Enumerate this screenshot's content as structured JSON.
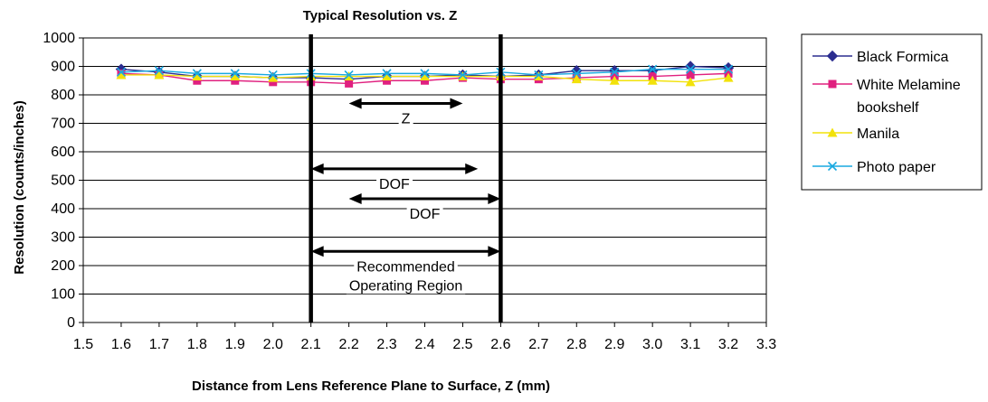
{
  "chart_data": {
    "type": "line",
    "title": "Typical Resolution vs. Z",
    "xlabel": "Distance from Lens Reference Plane to Surface, Z (mm)",
    "ylabel": "Resolution (counts/inches)",
    "xlim": [
      1.5,
      3.3
    ],
    "ylim": [
      0,
      1000
    ],
    "x_ticks": [
      "1.5",
      "1.6",
      "1.7",
      "1.8",
      "1.9",
      "2.0",
      "2.1",
      "2.2",
      "2.3",
      "2.4",
      "2.5",
      "2.6",
      "2.7",
      "2.8",
      "2.9",
      "3.0",
      "3.1",
      "3.2",
      "3.3"
    ],
    "y_ticks": [
      "0",
      "100",
      "200",
      "300",
      "400",
      "500",
      "600",
      "700",
      "800",
      "900",
      "1000"
    ],
    "grid": "horizontal",
    "legend_position": "right",
    "x": [
      1.6,
      1.7,
      1.8,
      1.9,
      2.0,
      2.1,
      2.2,
      2.3,
      2.4,
      2.5,
      2.6,
      2.7,
      2.8,
      2.9,
      3.0,
      3.1,
      3.2
    ],
    "series": [
      {
        "name": "Black Formica",
        "color": "#2b2d8f",
        "marker": "diamond",
        "values": [
          890,
          880,
          865,
          865,
          860,
          860,
          855,
          865,
          865,
          870,
          865,
          870,
          885,
          885,
          885,
          900,
          895
        ]
      },
      {
        "name": "White Melamine bookshelf",
        "color": "#e0207f",
        "marker": "square",
        "values": [
          875,
          870,
          850,
          850,
          845,
          845,
          840,
          850,
          850,
          860,
          855,
          855,
          860,
          865,
          865,
          870,
          875
        ]
      },
      {
        "name": "Manila",
        "color": "#f2e20a",
        "marker": "triangle",
        "values": [
          870,
          870,
          865,
          865,
          860,
          865,
          865,
          865,
          865,
          865,
          865,
          865,
          855,
          850,
          850,
          845,
          860
        ]
      },
      {
        "name": "Photo paper",
        "color": "#19a9e0",
        "marker": "x",
        "values": [
          880,
          885,
          875,
          875,
          870,
          875,
          870,
          875,
          875,
          870,
          880,
          870,
          875,
          880,
          890,
          890,
          890
        ]
      }
    ],
    "legend_labels": [
      [
        "Black Formica"
      ],
      [
        "White Melamine",
        "bookshelf"
      ],
      [
        "Manila"
      ],
      [
        "Photo paper"
      ]
    ],
    "vertical_lines": [
      2.1,
      2.6
    ],
    "annotations": [
      {
        "label": [
          "Z"
        ],
        "from": 2.2,
        "to": 2.5,
        "y": 770
      },
      {
        "label": [
          "DOF"
        ],
        "from": 2.1,
        "to": 2.54,
        "y": 540
      },
      {
        "label": [
          "DOF"
        ],
        "from": 2.2,
        "to": 2.6,
        "y": 435
      },
      {
        "label": [
          "Recommended",
          "Operating Region"
        ],
        "from": 2.1,
        "to": 2.6,
        "y": 250
      }
    ]
  }
}
